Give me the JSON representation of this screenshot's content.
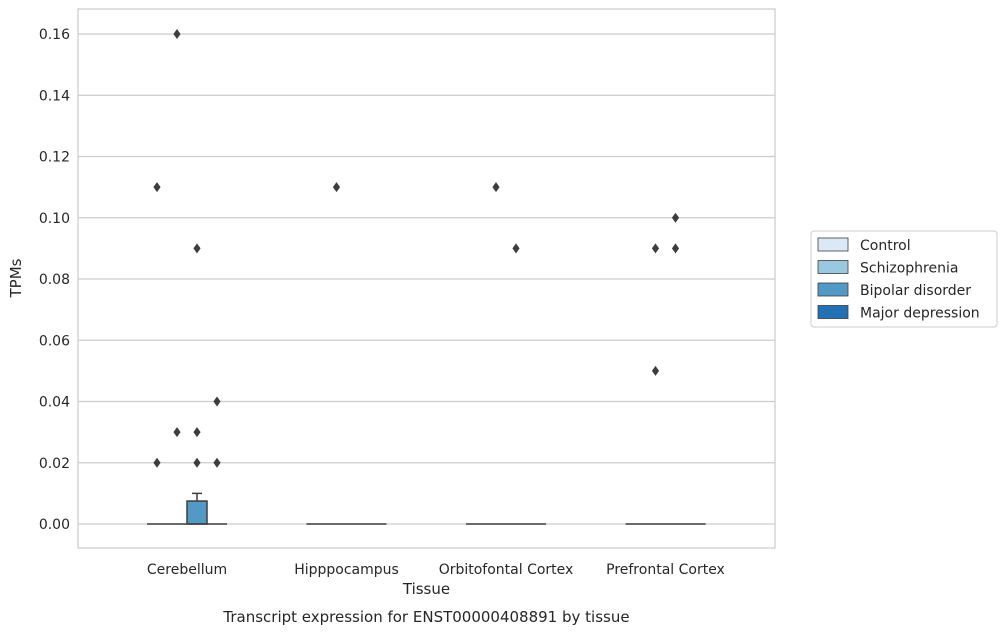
{
  "chart_data": {
    "type": "box",
    "title": "",
    "caption": "Transcript expression for ENST00000408891 by tissue",
    "xlabel": "Tissue",
    "ylabel": "TPMs",
    "ylim": [
      -0.008,
      0.168
    ],
    "yticks": [
      0.0,
      0.02,
      0.04,
      0.06,
      0.08,
      0.1,
      0.12,
      0.14,
      0.16
    ],
    "ytick_labels": [
      "0.00",
      "0.02",
      "0.04",
      "0.06",
      "0.08",
      "0.10",
      "0.12",
      "0.14",
      "0.16"
    ],
    "grid": "horizontal",
    "legend_position": "right, outside",
    "categories": [
      "Cerebellum",
      "Hipppocampus",
      "Orbitofontal Cortex",
      "Prefrontal Cortex"
    ],
    "series": [
      {
        "name": "Control",
        "color": "#dbe9f6"
      },
      {
        "name": "Schizophrenia",
        "color": "#9ac8e0"
      },
      {
        "name": "Bipolar disorder",
        "color": "#5399c6"
      },
      {
        "name": "Major depression",
        "color": "#2271b5"
      }
    ],
    "boxes": [
      {
        "category": 0,
        "series": 0,
        "q1": 0,
        "median": 0,
        "q3": 0,
        "whisker_low": 0,
        "whisker_high": 0,
        "outliers": [
          0.02,
          0.11
        ]
      },
      {
        "category": 0,
        "series": 1,
        "q1": 0,
        "median": 0,
        "q3": 0,
        "whisker_low": 0,
        "whisker_high": 0,
        "outliers": [
          0.03,
          0.16
        ]
      },
      {
        "category": 0,
        "series": 2,
        "q1": 0,
        "median": 0,
        "q3": 0.0075,
        "whisker_low": 0,
        "whisker_high": 0.01,
        "outliers": [
          0.02,
          0.03,
          0.09
        ]
      },
      {
        "category": 0,
        "series": 3,
        "q1": 0,
        "median": 0,
        "q3": 0,
        "whisker_low": 0,
        "whisker_high": 0,
        "outliers": [
          0.02,
          0.04
        ]
      },
      {
        "category": 1,
        "series": 0,
        "q1": 0,
        "median": 0,
        "q3": 0,
        "whisker_low": 0,
        "whisker_high": 0,
        "outliers": []
      },
      {
        "category": 1,
        "series": 1,
        "q1": 0,
        "median": 0,
        "q3": 0,
        "whisker_low": 0,
        "whisker_high": 0,
        "outliers": [
          0.11
        ]
      },
      {
        "category": 1,
        "series": 2,
        "q1": 0,
        "median": 0,
        "q3": 0,
        "whisker_low": 0,
        "whisker_high": 0,
        "outliers": []
      },
      {
        "category": 1,
        "series": 3,
        "q1": 0,
        "median": 0,
        "q3": 0,
        "whisker_low": 0,
        "whisker_high": 0,
        "outliers": []
      },
      {
        "category": 2,
        "series": 0,
        "q1": 0,
        "median": 0,
        "q3": 0,
        "whisker_low": 0,
        "whisker_high": 0,
        "outliers": []
      },
      {
        "category": 2,
        "series": 1,
        "q1": 0,
        "median": 0,
        "q3": 0,
        "whisker_low": 0,
        "whisker_high": 0,
        "outliers": [
          0.11
        ]
      },
      {
        "category": 2,
        "series": 2,
        "q1": 0,
        "median": 0,
        "q3": 0,
        "whisker_low": 0,
        "whisker_high": 0,
        "outliers": [
          0.09
        ]
      },
      {
        "category": 2,
        "series": 3,
        "q1": 0,
        "median": 0,
        "q3": 0,
        "whisker_low": 0,
        "whisker_high": 0,
        "outliers": []
      },
      {
        "category": 3,
        "series": 0,
        "q1": 0,
        "median": 0,
        "q3": 0,
        "whisker_low": 0,
        "whisker_high": 0,
        "outliers": []
      },
      {
        "category": 3,
        "series": 1,
        "q1": 0,
        "median": 0,
        "q3": 0,
        "whisker_low": 0,
        "whisker_high": 0,
        "outliers": [
          0.05,
          0.09
        ]
      },
      {
        "category": 3,
        "series": 2,
        "q1": 0,
        "median": 0,
        "q3": 0,
        "whisker_low": 0,
        "whisker_high": 0,
        "outliers": [
          0.09,
          0.1
        ]
      },
      {
        "category": 3,
        "series": 3,
        "q1": 0,
        "median": 0,
        "q3": 0,
        "whisker_low": 0,
        "whisker_high": 0,
        "outliers": []
      }
    ]
  }
}
